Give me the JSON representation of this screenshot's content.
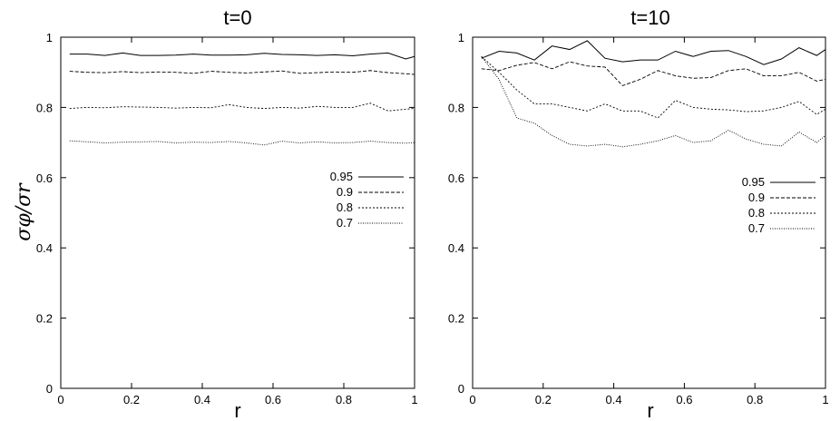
{
  "chart_data": [
    {
      "type": "line",
      "title": "t=0",
      "xlabel": "r",
      "ylabel": "σφ/σr",
      "xlim": [
        0,
        1
      ],
      "ylim": [
        0,
        1
      ],
      "xticks": [
        "0",
        "0.2",
        "0.4",
        "0.6",
        "0.8",
        "1"
      ],
      "yticks": [
        "0",
        "0.2",
        "0.4",
        "0.6",
        "0.8",
        "1"
      ],
      "legend_position": "right-middle",
      "x": [
        0.025,
        0.075,
        0.125,
        0.175,
        0.225,
        0.275,
        0.325,
        0.375,
        0.425,
        0.475,
        0.525,
        0.575,
        0.625,
        0.675,
        0.725,
        0.775,
        0.825,
        0.875,
        0.925,
        0.975,
        1.0
      ],
      "series": [
        {
          "name": "0.95",
          "dash": "solid",
          "values": [
            0.952,
            0.952,
            0.948,
            0.955,
            0.948,
            0.948,
            0.949,
            0.952,
            0.949,
            0.949,
            0.95,
            0.954,
            0.951,
            0.95,
            0.948,
            0.95,
            0.947,
            0.952,
            0.955,
            0.938,
            0.945
          ]
        },
        {
          "name": "0.9",
          "dash": "dashed",
          "values": [
            0.903,
            0.9,
            0.899,
            0.902,
            0.899,
            0.901,
            0.9,
            0.897,
            0.903,
            0.9,
            0.898,
            0.901,
            0.904,
            0.897,
            0.899,
            0.901,
            0.9,
            0.905,
            0.899,
            0.896,
            0.894
          ]
        },
        {
          "name": "0.8",
          "dash": "dotted",
          "values": [
            0.797,
            0.8,
            0.799,
            0.802,
            0.801,
            0.8,
            0.798,
            0.8,
            0.799,
            0.808,
            0.8,
            0.797,
            0.8,
            0.798,
            0.803,
            0.8,
            0.8,
            0.812,
            0.79,
            0.795,
            0.797
          ]
        },
        {
          "name": "0.7",
          "dash": "fine-dotted",
          "values": [
            0.705,
            0.702,
            0.699,
            0.701,
            0.702,
            0.703,
            0.699,
            0.701,
            0.7,
            0.703,
            0.699,
            0.693,
            0.704,
            0.699,
            0.702,
            0.699,
            0.7,
            0.704,
            0.7,
            0.698,
            0.7
          ]
        }
      ]
    },
    {
      "type": "line",
      "title": "t=10",
      "xlabel": "r",
      "ylabel": "",
      "xlim": [
        0,
        1
      ],
      "ylim": [
        0,
        1
      ],
      "xticks": [
        "0",
        "0.2",
        "0.4",
        "0.6",
        "0.8",
        "1"
      ],
      "yticks": [
        "0",
        "0.2",
        "0.4",
        "0.6",
        "0.8",
        "1"
      ],
      "legend_position": "right-middle",
      "x": [
        0.025,
        0.075,
        0.125,
        0.175,
        0.225,
        0.275,
        0.325,
        0.375,
        0.425,
        0.475,
        0.525,
        0.575,
        0.625,
        0.675,
        0.725,
        0.775,
        0.825,
        0.875,
        0.925,
        0.975,
        1.0
      ],
      "series": [
        {
          "name": "0.95",
          "dash": "solid",
          "values": [
            0.94,
            0.96,
            0.955,
            0.935,
            0.975,
            0.965,
            0.99,
            0.94,
            0.93,
            0.935,
            0.935,
            0.96,
            0.945,
            0.96,
            0.962,
            0.945,
            0.922,
            0.938,
            0.97,
            0.948,
            0.965
          ]
        },
        {
          "name": "0.9",
          "dash": "dashed",
          "values": [
            0.91,
            0.905,
            0.92,
            0.928,
            0.91,
            0.93,
            0.918,
            0.915,
            0.862,
            0.88,
            0.905,
            0.89,
            0.883,
            0.885,
            0.905,
            0.91,
            0.89,
            0.89,
            0.9,
            0.875,
            0.88
          ]
        },
        {
          "name": "0.8",
          "dash": "dotted",
          "values": [
            0.945,
            0.9,
            0.85,
            0.81,
            0.81,
            0.8,
            0.79,
            0.81,
            0.79,
            0.79,
            0.77,
            0.82,
            0.8,
            0.795,
            0.793,
            0.788,
            0.79,
            0.8,
            0.817,
            0.78,
            0.795
          ]
        },
        {
          "name": "0.7",
          "dash": "fine-dotted",
          "values": [
            0.945,
            0.88,
            0.77,
            0.755,
            0.72,
            0.695,
            0.69,
            0.695,
            0.688,
            0.695,
            0.705,
            0.72,
            0.7,
            0.705,
            0.735,
            0.71,
            0.695,
            0.69,
            0.73,
            0.7,
            0.72
          ]
        }
      ]
    }
  ]
}
